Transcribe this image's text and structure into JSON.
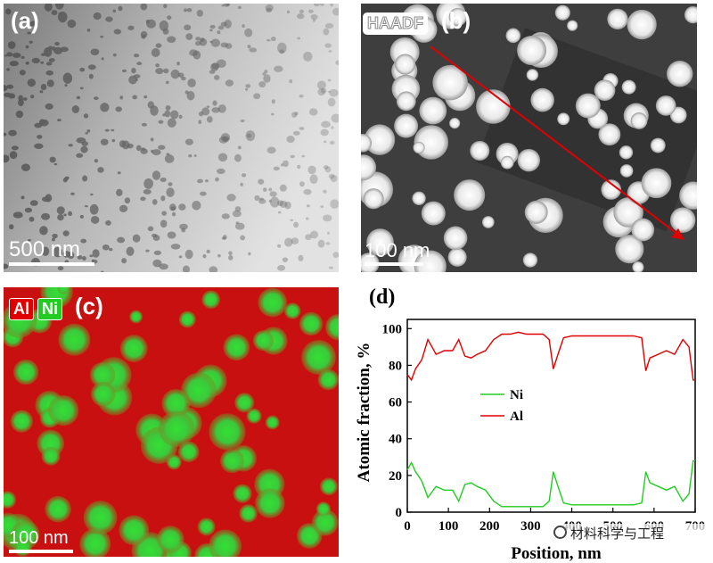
{
  "panels": {
    "a": {
      "label": "(a)",
      "scale": "500 nm"
    },
    "b": {
      "label": "(b)",
      "mode": "HAADF",
      "scale": "100 nm"
    },
    "c": {
      "label": "(c)",
      "legend_al": "Al",
      "legend_ni": "Ni",
      "scale": "100 nm"
    },
    "d": {
      "label": "(d)"
    }
  },
  "watermark": "材料科学与工程",
  "colors": {
    "al": "#e00000",
    "ni": "#22cc22",
    "arrow": "#e00000"
  },
  "chart_data": {
    "type": "line",
    "xlabel": "Position, nm",
    "ylabel": "Atomic fraction, %",
    "xlim": [
      0,
      700
    ],
    "ylim": [
      0,
      105
    ],
    "xticks": [
      0,
      100,
      200,
      300,
      400,
      500,
      600,
      700
    ],
    "yticks": [
      0,
      20,
      40,
      60,
      80,
      100
    ],
    "legend_position": "center-left",
    "series": [
      {
        "name": "Ni",
        "color": "#22cc22",
        "x": [
          0,
          10,
          20,
          35,
          50,
          70,
          90,
          110,
          125,
          140,
          155,
          170,
          190,
          210,
          230,
          250,
          270,
          290,
          310,
          330,
          345,
          355,
          365,
          380,
          400,
          430,
          460,
          490,
          520,
          550,
          570,
          580,
          590,
          610,
          630,
          650,
          670,
          685,
          695,
          700
        ],
        "y": [
          23,
          27,
          22,
          17,
          8,
          14,
          12,
          12,
          6,
          15,
          16,
          14,
          12,
          6,
          3,
          3,
          3,
          3,
          3,
          3,
          6,
          22,
          15,
          5,
          4,
          4,
          4,
          4,
          4,
          4,
          5,
          22,
          16,
          14,
          12,
          14,
          6,
          10,
          28,
          28
        ]
      },
      {
        "name": "Al",
        "color": "#e00000",
        "x": [
          0,
          10,
          20,
          35,
          50,
          70,
          90,
          110,
          125,
          140,
          155,
          170,
          190,
          210,
          230,
          250,
          270,
          290,
          310,
          330,
          345,
          355,
          365,
          380,
          400,
          430,
          460,
          490,
          520,
          550,
          570,
          580,
          590,
          610,
          630,
          650,
          670,
          685,
          695,
          700
        ],
        "y": [
          75,
          72,
          78,
          83,
          94,
          86,
          88,
          88,
          94,
          85,
          84,
          86,
          88,
          94,
          97,
          97,
          98,
          97,
          97,
          97,
          94,
          78,
          85,
          95,
          96,
          96,
          96,
          96,
          96,
          96,
          95,
          77,
          84,
          86,
          88,
          86,
          94,
          90,
          72,
          72
        ]
      }
    ]
  }
}
